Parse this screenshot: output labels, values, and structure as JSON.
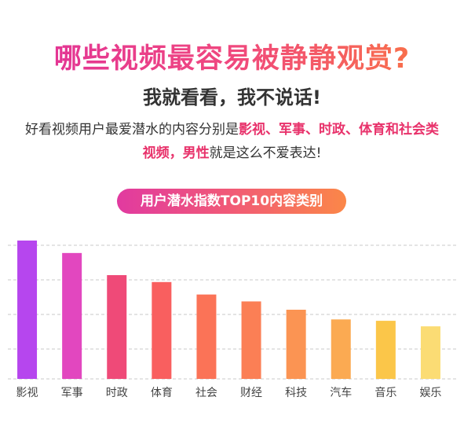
{
  "header": {
    "title": "哪些视频最容易被静静观赏?",
    "subtitle": "我就看看，我不说话!"
  },
  "description": {
    "p1": "好看视频用户最爱潜水的内容分别是",
    "h1": "影视、军事、时政、体育和社会类视频，",
    "h2": "男性",
    "p2": "就是这么不爱表达!"
  },
  "chart_data": {
    "type": "bar",
    "title": "用户潜水指数TOP10内容类别",
    "categories": [
      "影视",
      "军事",
      "时政",
      "体育",
      "社会",
      "财经",
      "科技",
      "汽车",
      "音乐",
      "娱乐"
    ],
    "values": [
      100,
      91,
      75,
      70,
      61,
      56,
      50,
      43,
      42,
      38
    ],
    "ylim": [
      0,
      100
    ],
    "grid": true,
    "colors": [
      "#b646ee",
      "#e247bf",
      "#ef4a78",
      "#f95f5f",
      "#fb7357",
      "#fb7f55",
      "#fb9453",
      "#fbaa52",
      "#fbc649",
      "#fbdc74"
    ]
  }
}
